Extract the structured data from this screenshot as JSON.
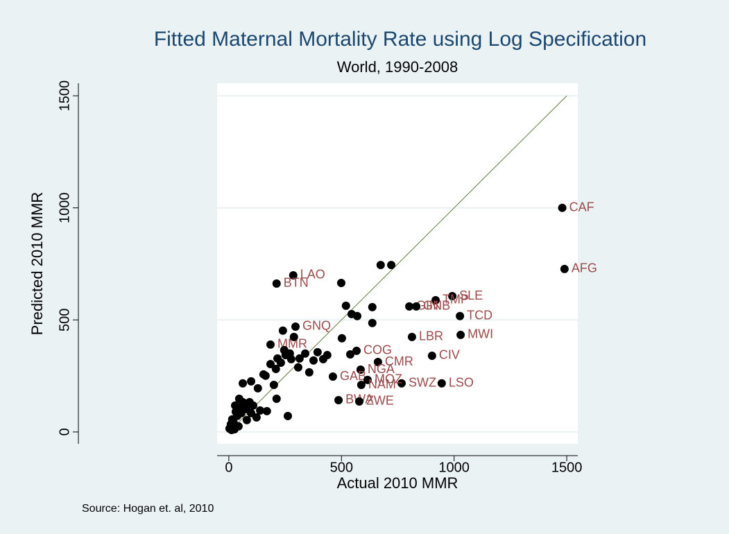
{
  "chart_data": {
    "type": "scatter",
    "title": "Fitted Maternal Mortality Rate using Log Specification",
    "subtitle": "World, 1990-2008",
    "x_label": "Actual 2010 MMR",
    "y_label": "Predicted 2010 MMR",
    "note": "Source: Hogan et. al, 2010",
    "xlim": [
      -52,
      1549
    ],
    "ylim": [
      -53,
      1556
    ],
    "xticks": [
      0,
      500,
      1000,
      1500
    ],
    "yticks": [
      0,
      500,
      1000,
      1500
    ],
    "grid": true,
    "point_color": "#000000",
    "label_color": "#9b4b4b",
    "reference_line": {
      "x": [
        0,
        1500
      ],
      "y": [
        0,
        1500
      ],
      "color": "#5f7a3c"
    },
    "x": [
      1480,
      1490,
      286,
      212,
      992,
      918,
      801,
      832,
      1026,
      1029,
      813,
      902,
      945,
      767,
      662,
      567,
      585,
      462,
      616,
      588,
      487,
      579,
      296,
      185,
      499,
      674,
      721,
      520,
      545,
      570,
      637,
      637,
      502,
      289,
      216,
      231,
      252,
      246,
      271,
      277,
      314,
      339,
      376,
      419,
      394,
      437,
      539,
      308,
      357,
      185,
      154,
      163,
      129,
      200,
      209,
      240,
      62,
      99,
      31,
      15,
      9,
      3,
      22,
      37,
      55,
      77,
      108,
      139,
      46,
      28,
      99,
      123,
      80,
      43,
      25,
      62,
      46,
      68,
      12,
      92,
      212,
      262,
      169
    ],
    "y": [
      1000,
      727,
      699,
      662,
      606,
      588,
      560,
      560,
      517,
      433,
      424,
      340,
      217,
      217,
      312,
      362,
      278,
      247,
      232,
      210,
      142,
      136,
      470,
      390,
      665,
      745,
      745,
      563,
      526,
      517,
      557,
      486,
      418,
      424,
      328,
      309,
      343,
      365,
      350,
      325,
      328,
      350,
      319,
      325,
      356,
      343,
      346,
      288,
      266,
      303,
      257,
      251,
      195,
      210,
      281,
      452,
      217,
      226,
      90,
      56,
      34,
      15,
      40,
      71,
      84,
      102,
      118,
      96,
      148,
      118,
      84,
      65,
      53,
      25,
      12,
      133,
      108,
      114,
      9,
      133,
      148,
      71,
      93
    ],
    "point_labels": [
      "CAF",
      "AFG",
      "LAO",
      "BTN",
      "SLE",
      "TMP",
      "GIN",
      "GNB",
      "TCD",
      "MWI",
      "LBR",
      "CIV",
      "LSO",
      "SWZ",
      "CMR",
      "COG",
      "NGA",
      "GAB",
      "MOZ",
      "NAM",
      "BWA",
      "ZWE",
      "GNQ",
      "MMR",
      null,
      null,
      null,
      null,
      null,
      null,
      null,
      null,
      null,
      null,
      null,
      null,
      null,
      null,
      null,
      null,
      null,
      null,
      null,
      null,
      null,
      null,
      null,
      null,
      null,
      null,
      null,
      null,
      null,
      null,
      null,
      null,
      null,
      null,
      null,
      null,
      null,
      null,
      null,
      null,
      null,
      null,
      null,
      null,
      null,
      null,
      null,
      null,
      null,
      null,
      null,
      null,
      null,
      null,
      null,
      null,
      null,
      null,
      null
    ]
  }
}
